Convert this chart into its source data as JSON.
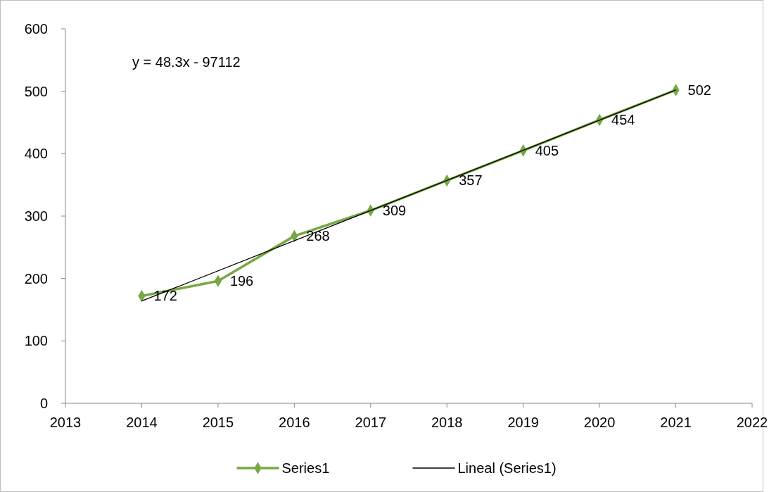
{
  "chart_data": {
    "type": "line",
    "x": [
      2014,
      2015,
      2016,
      2017,
      2018,
      2019,
      2020,
      2021
    ],
    "series": [
      {
        "name": "Series1",
        "color": "#77a843",
        "values": [
          172,
          196,
          268,
          309,
          357,
          405,
          454,
          502
        ],
        "marker": "diamond",
        "value_labels": [
          "172",
          "196",
          "268",
          "309",
          "357",
          "405",
          "454",
          "502"
        ]
      },
      {
        "name": "Lineal (Series1)",
        "color": "#000000",
        "x": [
          2014,
          2021
        ],
        "values": [
          164,
          502
        ],
        "marker": "none"
      }
    ],
    "xlim": [
      2013,
      2022
    ],
    "xticks": [
      2013,
      2014,
      2015,
      2016,
      2017,
      2018,
      2019,
      2020,
      2021,
      2022
    ],
    "ylim": [
      0,
      600
    ],
    "yticks": [
      0,
      100,
      200,
      300,
      400,
      500,
      600
    ],
    "annotations": [
      "y = 48.3x - 97112"
    ],
    "grid": false,
    "legend": "bottom"
  }
}
